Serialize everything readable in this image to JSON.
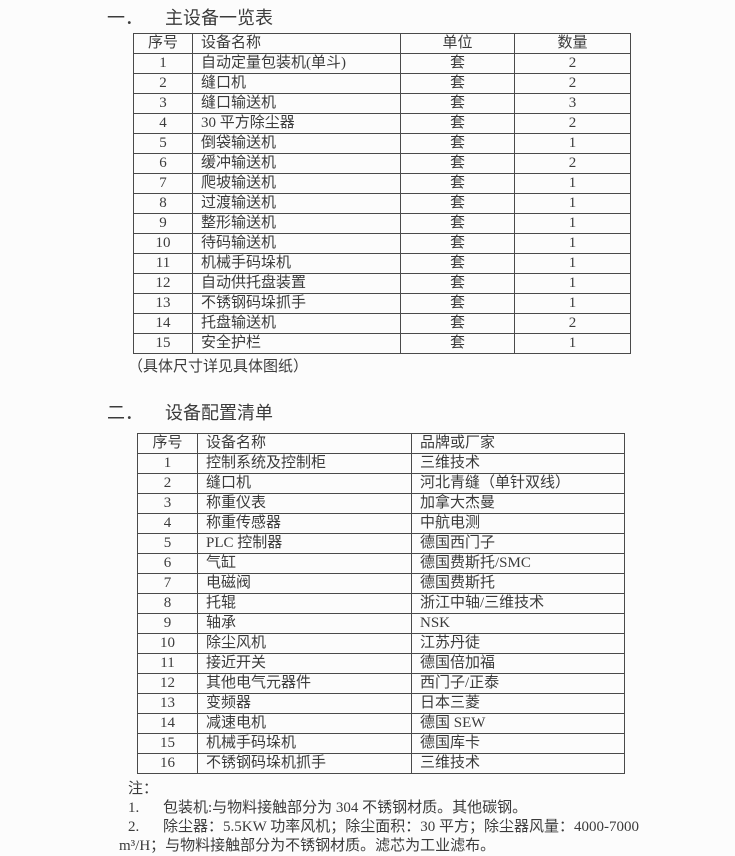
{
  "colors": {
    "page_background": "#fcfcfc",
    "text": "#3b3b3b",
    "table_border": "#4a4a4a"
  },
  "section1": {
    "heading_number": "一．",
    "heading_title": "主设备一览表",
    "table": {
      "headers": [
        "序号",
        "设备名称",
        "单位",
        "数量"
      ],
      "rows": [
        [
          "1",
          "自动定量包装机(单斗)",
          "套",
          "2"
        ],
        [
          "2",
          "缝口机",
          "套",
          "2"
        ],
        [
          "3",
          "缝口输送机",
          "套",
          "3"
        ],
        [
          "4",
          "30 平方除尘器",
          "套",
          "2"
        ],
        [
          "5",
          "倒袋输送机",
          "套",
          "1"
        ],
        [
          "6",
          "缓冲输送机",
          "套",
          "2"
        ],
        [
          "7",
          "爬坡输送机",
          "套",
          "1"
        ],
        [
          "8",
          "过渡输送机",
          "套",
          "1"
        ],
        [
          "9",
          "整形输送机",
          "套",
          "1"
        ],
        [
          "10",
          "待码输送机",
          "套",
          "1"
        ],
        [
          "11",
          "机械手码垛机",
          "套",
          "1"
        ],
        [
          "12",
          "自动供托盘装置",
          "套",
          "1"
        ],
        [
          "13",
          "不锈钢码垛抓手",
          "套",
          "1"
        ],
        [
          "14",
          "托盘输送机",
          "套",
          "2"
        ],
        [
          "15",
          "安全护栏",
          "套",
          "1"
        ]
      ]
    },
    "caption": "（具体尺寸详见具体图纸）"
  },
  "section2": {
    "heading_number": "二．",
    "heading_title": "设备配置清单",
    "table": {
      "headers": [
        "序号",
        "设备名称",
        "品牌或厂家"
      ],
      "rows": [
        [
          "1",
          "控制系统及控制柜",
          "三维技术"
        ],
        [
          "2",
          "缝口机",
          "河北青缝（单针双线）"
        ],
        [
          "3",
          "称重仪表",
          "加拿大杰曼"
        ],
        [
          "4",
          "称重传感器",
          "中航电测"
        ],
        [
          "5",
          "PLC 控制器",
          "德国西门子"
        ],
        [
          "6",
          "气缸",
          "德国费斯托/SMC"
        ],
        [
          "7",
          "电磁阀",
          "德国费斯托"
        ],
        [
          "8",
          "托辊",
          "浙江中轴/三维技术"
        ],
        [
          "9",
          "轴承",
          "NSK"
        ],
        [
          "10",
          "除尘风机",
          "江苏丹徒"
        ],
        [
          "11",
          "接近开关",
          "德国倍加福"
        ],
        [
          "12",
          "其他电气元器件",
          "西门子/正泰"
        ],
        [
          "13",
          "变频器",
          "日本三菱"
        ],
        [
          "14",
          "减速电机",
          "德国 SEW"
        ],
        [
          "15",
          "机械手码垛机",
          "德国库卡"
        ],
        [
          "16",
          "不锈钢码垛机抓手",
          "三维技术"
        ]
      ]
    }
  },
  "notes": {
    "label": "注：",
    "lines": [
      {
        "num": "1.",
        "text": "包装机:与物料接触部分为 304 不锈钢材质。其他碳钢。"
      },
      {
        "num": "2.",
        "text": "除尘器：5.5KW 功率风机；除尘面积：30 平方；除尘器风量：4000-7000"
      },
      {
        "num": "",
        "text": "m³/H；与物料接触部分为不锈钢材质。滤芯为工业滤布。"
      }
    ]
  }
}
